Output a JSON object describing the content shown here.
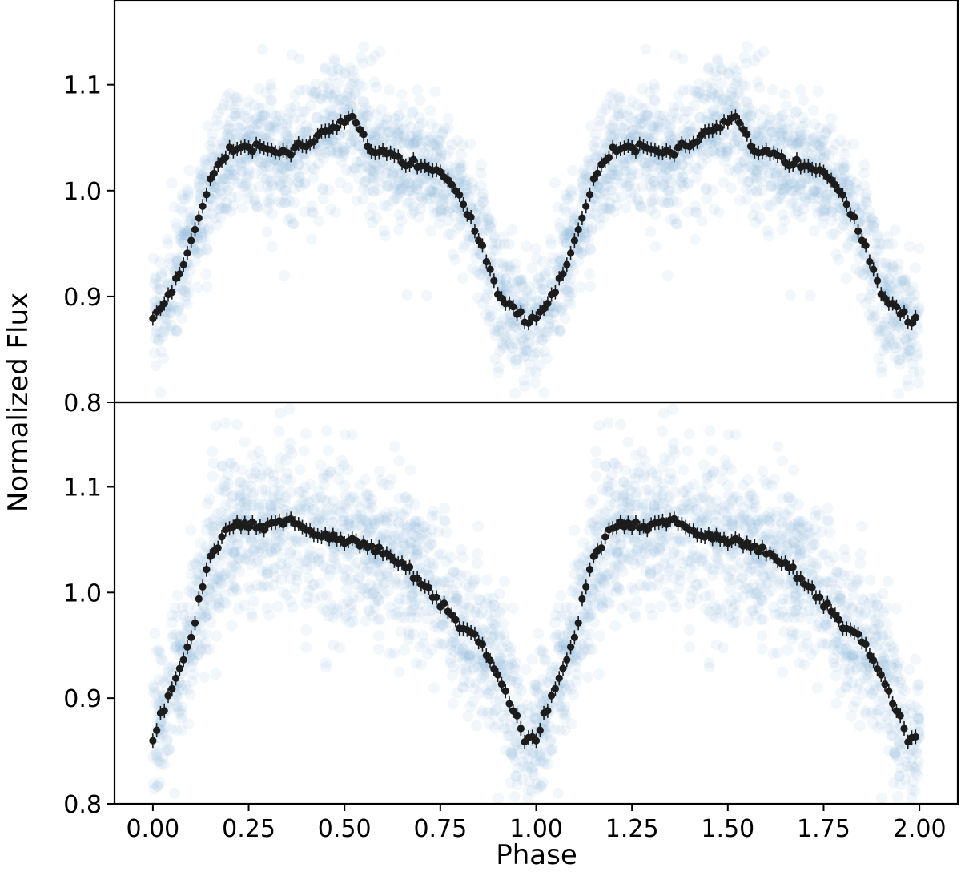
{
  "chart_data": {
    "type": "scatter",
    "title": "",
    "xlabel": "Phase",
    "ylabel": "Normalized Flux",
    "xlim": [
      -0.1,
      2.1
    ],
    "xticks": [
      0.0,
      0.25,
      0.5,
      0.75,
      1.0,
      1.25,
      1.5,
      1.75,
      2.0
    ],
    "xtick_labels": [
      "0.00",
      "0.25",
      "0.50",
      "0.75",
      "1.00",
      "1.25",
      "1.50",
      "1.75",
      "2.00"
    ],
    "grid": false,
    "colors": {
      "raw_points": "#8ab8dc",
      "binned_points": "#1c1c1c"
    },
    "panels": [
      {
        "name": "top",
        "ylim": [
          0.8,
          1.18
        ],
        "yticks": [
          0.8,
          0.9,
          1.0,
          1.1
        ],
        "ytick_labels": [
          "0.8",
          "0.9",
          "1.0",
          "1.1"
        ],
        "raw_scatter": 0.03,
        "binned_phase": [
          0.0,
          0.05,
          0.1,
          0.15,
          0.2,
          0.25,
          0.3,
          0.35,
          0.4,
          0.45,
          0.5,
          0.53,
          0.56,
          0.6,
          0.65,
          0.7,
          0.75,
          0.8,
          0.85,
          0.9,
          0.95,
          0.98,
          1.0
        ],
        "binned_flux": [
          0.883,
          0.905,
          0.95,
          1.01,
          1.04,
          1.04,
          1.04,
          1.035,
          1.045,
          1.055,
          1.065,
          1.068,
          1.04,
          1.035,
          1.028,
          1.025,
          1.015,
          0.995,
          0.955,
          0.905,
          0.885,
          0.875,
          0.883
        ]
      },
      {
        "name": "bottom",
        "ylim": [
          0.8,
          1.18
        ],
        "yticks": [
          0.8,
          0.9,
          1.0,
          1.1
        ],
        "ytick_labels": [
          "0.8",
          "0.9",
          "1.0",
          "1.1"
        ],
        "raw_scatter": 0.04,
        "binned_phase": [
          0.0,
          0.05,
          0.1,
          0.15,
          0.2,
          0.25,
          0.3,
          0.35,
          0.4,
          0.45,
          0.5,
          0.55,
          0.6,
          0.65,
          0.7,
          0.75,
          0.8,
          0.85,
          0.9,
          0.95,
          0.97,
          1.0
        ],
        "binned_flux": [
          0.863,
          0.91,
          0.96,
          1.035,
          1.062,
          1.065,
          1.062,
          1.07,
          1.06,
          1.055,
          1.05,
          1.045,
          1.038,
          1.028,
          1.01,
          0.99,
          0.97,
          0.955,
          0.925,
          0.88,
          0.862,
          0.863
        ]
      }
    ]
  }
}
